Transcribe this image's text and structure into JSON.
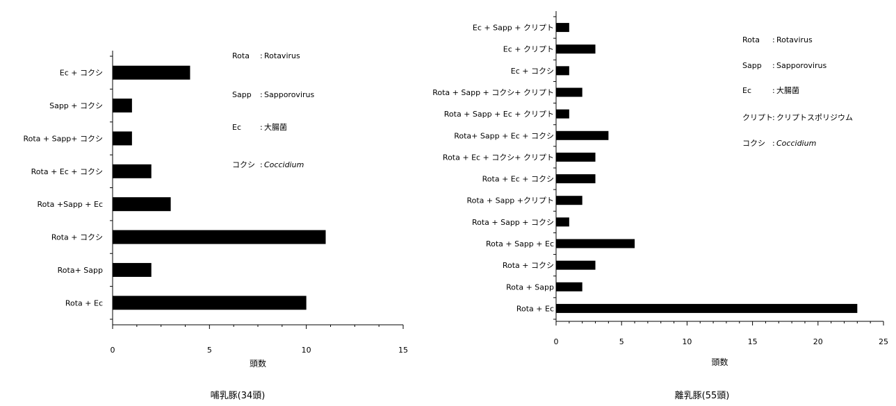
{
  "chart_data": [
    {
      "type": "bar",
      "orientation": "horizontal",
      "title": "哺乳豚(34頭)",
      "xlabel": "頭数",
      "xlim": [
        0,
        15
      ],
      "xticks": [
        "0",
        "5",
        "10",
        "15"
      ],
      "categories": [
        "Ec + コクシ",
        "Sapp + コクシ",
        "Rota + Sapp+ コクシ",
        "Rota + Ec + コクシ",
        "Rota +Sapp + Ec",
        "Rota + コクシ",
        "Rota+ Sapp",
        "Rota + Ec"
      ],
      "values": [
        4,
        1,
        1,
        2,
        3,
        11,
        2,
        10
      ],
      "legend": [
        {
          "key": "Rota",
          "sep": ":",
          "value": "Rotavirus",
          "italic": false
        },
        {
          "key": "Sapp",
          "sep": ":",
          "value": "Sapporovirus",
          "italic": false
        },
        {
          "key": "Ec",
          "sep": ":",
          "value": "大腸菌",
          "italic": false
        },
        {
          "key": "コクシ",
          "sep": ":",
          "value": "Coccidium",
          "italic": true
        }
      ]
    },
    {
      "type": "bar",
      "orientation": "horizontal",
      "title": "離乳豚(55頭)",
      "xlabel": "頭数",
      "xlim": [
        0,
        25
      ],
      "xticks": [
        "0",
        "5",
        "10",
        "15",
        "20",
        "25"
      ],
      "categories": [
        "Ec + Sapp + クリプト",
        "Ec + クリプト",
        "Ec + コクシ",
        "Rota + Sapp + コクシ+ クリプト",
        "Rota + Sapp + Ec + クリプト",
        "Rota+ Sapp + Ec + コクシ",
        "Rota + Ec + コクシ+ クリプト",
        "Rota + Ec + コクシ",
        "Rota + Sapp +クリプト",
        "Rota + Sapp + コクシ",
        "Rota + Sapp + Ec",
        "Rota + コクシ",
        "Rota + Sapp",
        "Rota + Ec"
      ],
      "values": [
        1,
        3,
        1,
        2,
        1,
        4,
        3,
        3,
        2,
        1,
        6,
        3,
        2,
        23
      ],
      "legend": [
        {
          "key": "Rota",
          "sep": ":",
          "value": "Rotavirus",
          "italic": false
        },
        {
          "key": "Sapp",
          "sep": ":",
          "value": "Sapporovirus",
          "italic": false
        },
        {
          "key": "Ec",
          "sep": ":",
          "value": "大腸菌",
          "italic": false
        },
        {
          "key": "クリプト",
          "sep": ":",
          "value": "クリプトスポリジウム",
          "italic": false
        },
        {
          "key": "コクシ",
          "sep": ":",
          "value": "Coccidium",
          "italic": true
        }
      ]
    }
  ]
}
